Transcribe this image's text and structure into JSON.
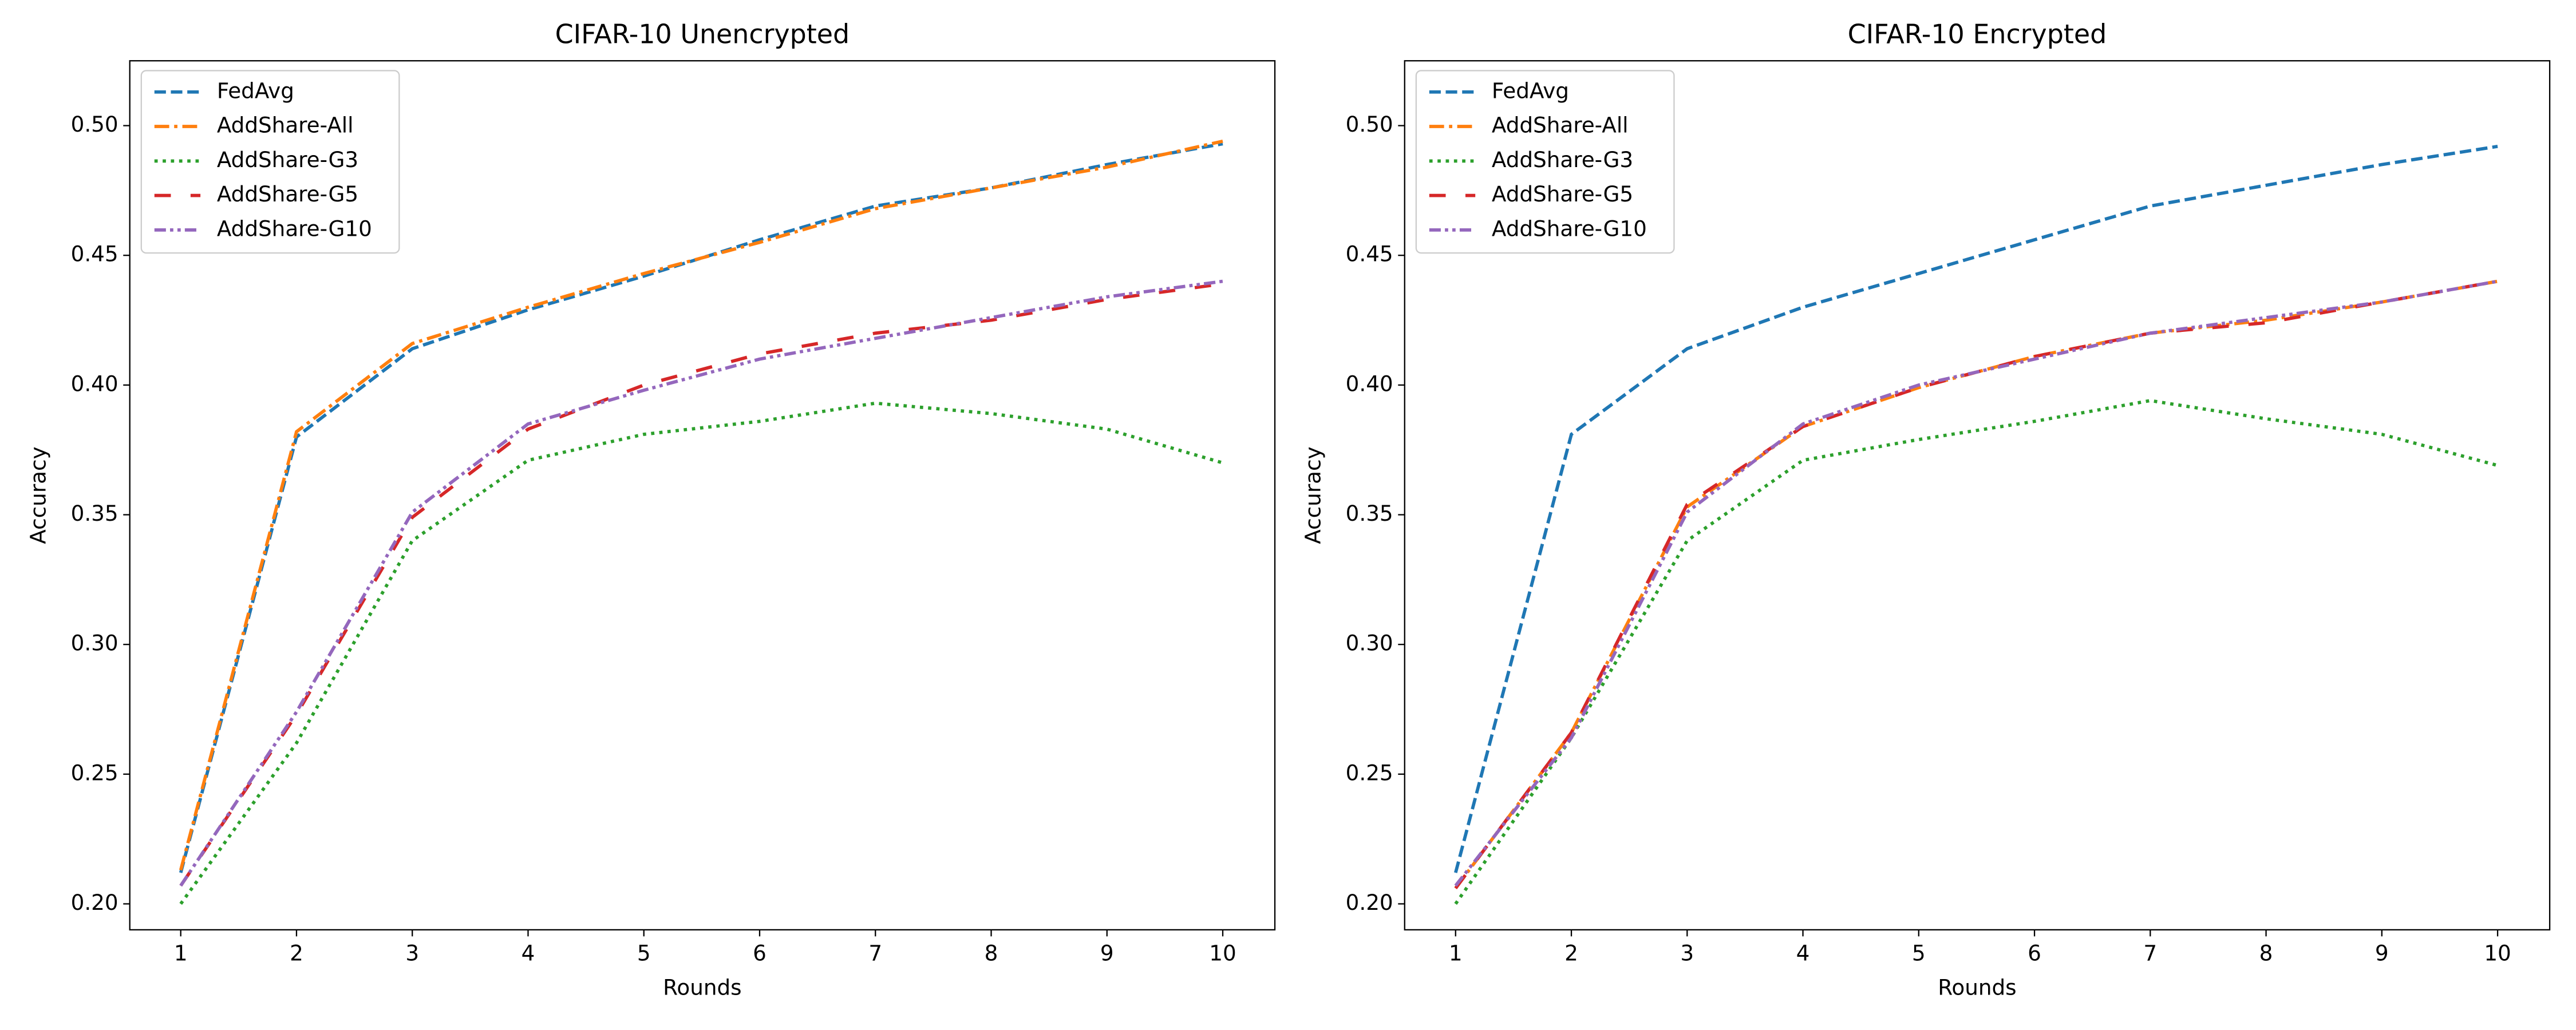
{
  "chart_data": [
    {
      "type": "line",
      "title": "CIFAR-10 Unencrypted",
      "xlabel": "Rounds",
      "ylabel": "Accuracy",
      "x": [
        1,
        2,
        3,
        4,
        5,
        6,
        7,
        8,
        9,
        10
      ],
      "xlim": [
        0.56,
        10.45
      ],
      "xticks": [
        1,
        2,
        3,
        4,
        5,
        6,
        7,
        8,
        9,
        10
      ],
      "ylim": [
        0.19,
        0.525
      ],
      "yticks": [
        {
          "value": 0.2,
          "label": "0.20"
        },
        {
          "value": 0.25,
          "label": "0.25"
        },
        {
          "value": 0.3,
          "label": "0.30"
        },
        {
          "value": 0.35,
          "label": "0.35"
        },
        {
          "value": 0.4,
          "label": "0.40"
        },
        {
          "value": 0.45,
          "label": "0.45"
        },
        {
          "value": 0.5,
          "label": "0.50"
        }
      ],
      "legend": "upper left",
      "series": [
        {
          "name": "FedAvg",
          "color": "#1f77b4",
          "linestyle": "dashed",
          "values": [
            0.212,
            0.38,
            0.414,
            0.429,
            0.442,
            0.456,
            0.469,
            0.476,
            0.485,
            0.493
          ]
        },
        {
          "name": "AddShare-All",
          "color": "#ff7f0e",
          "linestyle": "dashdot",
          "values": [
            0.213,
            0.382,
            0.416,
            0.43,
            0.443,
            0.455,
            0.468,
            0.476,
            0.484,
            0.494
          ]
        },
        {
          "name": "AddShare-G3",
          "color": "#2ca02c",
          "linestyle": "dotted",
          "values": [
            0.2,
            0.262,
            0.34,
            0.371,
            0.381,
            0.386,
            0.393,
            0.389,
            0.383,
            0.37
          ]
        },
        {
          "name": "AddShare-G5",
          "color": "#d62728",
          "linestyle": "loosely dashed",
          "values": [
            0.207,
            0.273,
            0.349,
            0.383,
            0.4,
            0.412,
            0.42,
            0.425,
            0.433,
            0.439
          ]
        },
        {
          "name": "AddShare-G10",
          "color": "#9467bd",
          "linestyle": "dashdotdotted",
          "values": [
            0.207,
            0.274,
            0.351,
            0.385,
            0.398,
            0.41,
            0.418,
            0.426,
            0.434,
            0.44
          ]
        }
      ]
    },
    {
      "type": "line",
      "title": "CIFAR-10 Encrypted",
      "xlabel": "Rounds",
      "ylabel": "Accuracy",
      "x": [
        1,
        2,
        3,
        4,
        5,
        6,
        7,
        8,
        9,
        10
      ],
      "xlim": [
        0.56,
        10.45
      ],
      "xticks": [
        1,
        2,
        3,
        4,
        5,
        6,
        7,
        8,
        9,
        10
      ],
      "ylim": [
        0.19,
        0.525
      ],
      "yticks": [
        {
          "value": 0.2,
          "label": "0.20"
        },
        {
          "value": 0.25,
          "label": "0.25"
        },
        {
          "value": 0.3,
          "label": "0.30"
        },
        {
          "value": 0.35,
          "label": "0.35"
        },
        {
          "value": 0.4,
          "label": "0.40"
        },
        {
          "value": 0.45,
          "label": "0.45"
        },
        {
          "value": 0.5,
          "label": "0.50"
        }
      ],
      "legend": "upper left",
      "series": [
        {
          "name": "FedAvg",
          "color": "#1f77b4",
          "linestyle": "dashed",
          "values": [
            0.212,
            0.381,
            0.414,
            0.43,
            0.443,
            0.456,
            0.469,
            0.477,
            0.485,
            0.492
          ]
        },
        {
          "name": "AddShare-All",
          "color": "#ff7f0e",
          "linestyle": "dashdot",
          "values": [
            0.206,
            0.266,
            0.353,
            0.384,
            0.399,
            0.411,
            0.42,
            0.425,
            0.432,
            0.44
          ]
        },
        {
          "name": "AddShare-G3",
          "color": "#2ca02c",
          "linestyle": "dotted",
          "values": [
            0.2,
            0.264,
            0.34,
            0.371,
            0.379,
            0.386,
            0.394,
            0.387,
            0.381,
            0.369
          ]
        },
        {
          "name": "AddShare-G5",
          "color": "#d62728",
          "linestyle": "loosely dashed",
          "values": [
            0.206,
            0.266,
            0.354,
            0.384,
            0.399,
            0.411,
            0.42,
            0.424,
            0.432,
            0.44
          ]
        },
        {
          "name": "AddShare-G10",
          "color": "#9467bd",
          "linestyle": "dashdotdotted",
          "values": [
            0.207,
            0.264,
            0.351,
            0.385,
            0.4,
            0.41,
            0.42,
            0.426,
            0.432,
            0.44
          ]
        }
      ]
    }
  ]
}
